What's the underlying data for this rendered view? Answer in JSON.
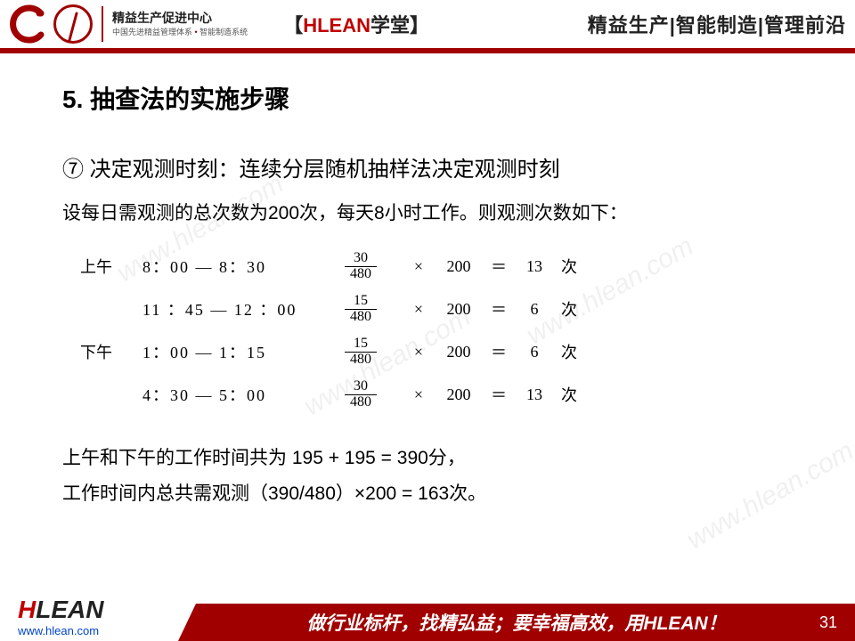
{
  "header": {
    "org_title": "精益生产促进中心",
    "org_sub_a": "中国先进精益管理体系",
    "org_sub_b": "智能制造系统",
    "brand_bracket_open": "【",
    "brand_h": "HLEAN",
    "brand_xuetang": "学堂",
    "brand_bracket_close": "】",
    "tagline": "精益生产|智能制造|管理前沿"
  },
  "content": {
    "title": "5. 抽查法的实施步骤",
    "step_marker": "⑦",
    "step_text": "决定观测时刻：连续分层随机抽样法决定观测时刻",
    "desc": "设每日需观测的总次数为200次，每天8小时工作。则观测次数如下：",
    "rows": [
      {
        "period": "上午",
        "time": "8：00  —  8：30",
        "num": "30",
        "den": "480",
        "total": "200",
        "result": "13",
        "unit": "次"
      },
      {
        "period": "",
        "time": "11 ：45  —  12 ：00",
        "num": "15",
        "den": "480",
        "total": "200",
        "result": "6",
        "unit": "次"
      },
      {
        "period": "下午",
        "time": "1：00  —  1：15",
        "num": "15",
        "den": "480",
        "total": "200",
        "result": "6",
        "unit": "次"
      },
      {
        "period": "",
        "time": "4：30  —  5：00",
        "num": "30",
        "den": "480",
        "total": "200",
        "result": "13",
        "unit": "次"
      }
    ],
    "mult_sign": "×",
    "eq_sign": "＝",
    "summary1": "上午和下午的工作时间共为 195 + 195 = 390分，",
    "summary2": "工作时间内总共需观测（390/480）×200 = 163次。"
  },
  "footer": {
    "brand_h": "H",
    "brand_lean": "LEAN",
    "url": "www.hlean.com",
    "slogan_a": "做行业标杆，找精弘益；要幸福高效，用",
    "slogan_b": "HLEAN",
    "slogan_c": "！",
    "page": "31"
  },
  "watermark": "www.hlean.com",
  "colors": {
    "brand_red": "#a00000",
    "accent_red": "#c00000",
    "text": "#222222",
    "link": "#0044cc"
  }
}
